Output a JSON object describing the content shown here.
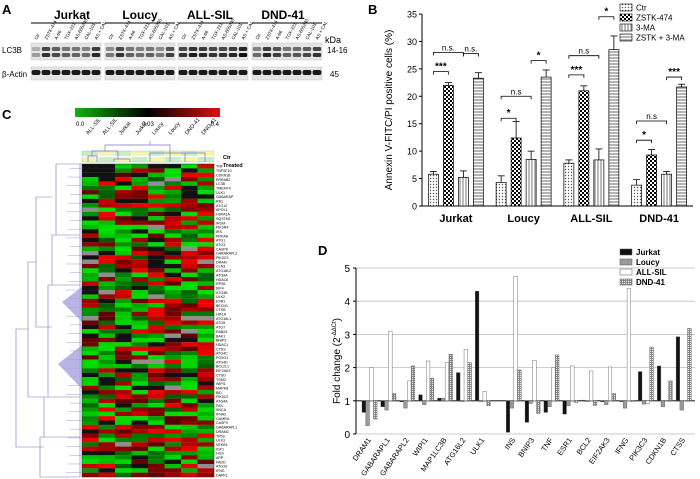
{
  "panels": {
    "A": "A",
    "B": "B",
    "C": "C",
    "D": "D"
  },
  "western": {
    "groups": [
      "Jurkat",
      "Loucy",
      "ALL-SIL",
      "DND-41"
    ],
    "lanes": [
      "Ctr",
      "ZSTK-474",
      "A-66",
      "TGX-221",
      "AS-605240",
      "CAL-101",
      "AS + CAL"
    ],
    "kda_label": "kDa",
    "rows": [
      {
        "label": "LC3B",
        "kda": "14-16"
      },
      {
        "label": "β-Actin",
        "kda": "45"
      }
    ]
  },
  "heatmap": {
    "scale": {
      "min": "0.0",
      "mid": "0.03",
      "max": "0.4"
    },
    "columns": [
      "ALL-SIL",
      "ALL-SIL",
      "Jurkat",
      "Jurkat",
      "Loucy",
      "Loucy",
      "DND-41",
      "DND-41"
    ],
    "legend": [
      "Ctr",
      "Treated"
    ],
    "genes": [
      "TNF",
      "TNFSF10",
      "CDKN1B",
      "ERRAB2",
      "LC3B",
      "TMEM74",
      "ULK1",
      "GABARAP",
      "RB1",
      "ATG12",
      "APOL1",
      "HSPA1A",
      "SQSTM1",
      "IRGM",
      "PIK3R4",
      "IRS",
      "PRKAA",
      "ATG1",
      "ATG3",
      "CASP8",
      "GABARAPL2",
      "PIK3C3",
      "DRAM",
      "CLN3",
      "ATG16L2",
      "ATG9A",
      "HDAC6",
      "RPS6",
      "EIF4",
      "ATG4B",
      "ULK2",
      "ESR1",
      "BECN1",
      "CTSB",
      "HIF1A",
      "ATG16L1",
      "ATG5",
      "ATG7",
      "RAB24",
      "BAK1",
      "BNIP3",
      "HDAC1",
      "CTSS",
      "ATG4C",
      "FOXO1",
      "ATG4D",
      "BCL2L1",
      "EIF2AK3",
      "CTSD",
      "TGM2",
      "WIPI1",
      "MAPK8",
      "BID",
      "PIK3C2",
      "ATG4A",
      "FAS",
      "SNCA",
      "IFNA2",
      "GAMRA",
      "CASP3",
      "GABARAPL1",
      "DRAM2",
      "TP53",
      "ULK3",
      "NFKB1",
      "IGF1",
      "HGS",
      "APP",
      "FADD",
      "ATG10",
      "IFNG",
      "DAPK1"
    ]
  },
  "chart_data": [
    {
      "id": "B",
      "type": "bar",
      "title": "",
      "ylabel": "Annexin V-FITC/PI positive cells (%)",
      "xlabel": "",
      "ylim": [
        0,
        35
      ],
      "yticks": [
        0,
        5,
        10,
        15,
        20,
        25,
        30,
        35
      ],
      "categories": [
        "Jurkat",
        "Loucy",
        "ALL-SIL",
        "DND-41"
      ],
      "series": [
        {
          "name": "Ctr",
          "values": [
            5.8,
            4.3,
            7.8,
            3.8
          ],
          "errors": [
            0.5,
            1.2,
            0.6,
            1.0
          ]
        },
        {
          "name": "ZSTK-474",
          "values": [
            22.0,
            12.4,
            21.0,
            9.3
          ],
          "errors": [
            0.5,
            3.0,
            0.9,
            1.0
          ]
        },
        {
          "name": "3-MA",
          "values": [
            5.2,
            8.5,
            8.4,
            5.8
          ],
          "errors": [
            1.2,
            1.5,
            2.0,
            0.5
          ]
        },
        {
          "name": "ZSTK + 3-MA",
          "values": [
            23.3,
            23.5,
            28.5,
            21.7
          ],
          "errors": [
            1.0,
            1.3,
            2.5,
            0.5
          ]
        }
      ],
      "legend_position": "top-right",
      "significance": [
        {
          "group": 0,
          "from": 0,
          "to": 1,
          "label": "***"
        },
        {
          "group": 0,
          "from": 0,
          "to": 2,
          "label": "n.s."
        },
        {
          "group": 0,
          "from": 2,
          "to": 3,
          "label": "n.s."
        },
        {
          "group": 1,
          "from": 0,
          "to": 1,
          "label": "*"
        },
        {
          "group": 1,
          "from": 0,
          "to": 2,
          "label": "n.s"
        },
        {
          "group": 1,
          "from": 2,
          "to": 3,
          "label": "*"
        },
        {
          "group": 2,
          "from": 0,
          "to": 1,
          "label": "***"
        },
        {
          "group": 2,
          "from": 0,
          "to": 2,
          "label": "n.s"
        },
        {
          "group": 2,
          "from": 2,
          "to": 3,
          "label": "*"
        },
        {
          "group": 3,
          "from": 0,
          "to": 1,
          "label": "*"
        },
        {
          "group": 3,
          "from": 0,
          "to": 2,
          "label": "n.s"
        },
        {
          "group": 3,
          "from": 2,
          "to": 3,
          "label": "***"
        }
      ]
    },
    {
      "id": "D",
      "type": "bar",
      "title": "",
      "ylabel": "Fold change (2^-ΔΔCt)",
      "ylabel_main": "Fold change (2",
      "ylabel_sup": "-ΔΔCt",
      "ylabel_end": ")",
      "xlabel": "",
      "ylim": [
        0,
        5
      ],
      "yticks": [
        0,
        1,
        2,
        3,
        4,
        5
      ],
      "baseline": 1,
      "categories": [
        "DRAM1",
        "GABARAPL1",
        "GABARAPL2",
        "WIPI1",
        "MAP1LC3B",
        "ATG16L2",
        "ULK1",
        "INS",
        "BNIP3",
        "TNF",
        "ESR1",
        "BCL2",
        "EIF2AK3",
        "IFNG",
        "PIK3C3",
        "CDKN1B",
        "CTSS"
      ],
      "series": [
        {
          "name": "Jurkat",
          "values": [
            0.65,
            0.82,
            0.97,
            1.18,
            1.08,
            1.85,
            4.3,
            0.05,
            0.35,
            0.65,
            0.6,
            1.02,
            0.97,
            1.0,
            1.88,
            2.05,
            2.93
          ]
        },
        {
          "name": "Loucy",
          "values": [
            0.25,
            0.72,
            0.78,
            0.88,
            1.08,
            1.0,
            1.0,
            0.78,
            0.92,
            0.82,
            0.85,
            0.97,
            0.88,
            0.78,
            0.9,
            0.82,
            0.72
          ]
        },
        {
          "name": "ALL-SIL",
          "values": [
            2.0,
            3.1,
            1.6,
            2.2,
            2.15,
            2.55,
            1.28,
            4.75,
            2.22,
            2.0,
            2.05,
            1.9,
            2.02,
            4.38,
            0.92,
            1.0,
            1.0
          ]
        },
        {
          "name": "DND-41",
          "values": [
            0.45,
            1.22,
            2.05,
            1.68,
            2.4,
            2.15,
            0.85,
            1.93,
            0.62,
            2.38,
            0.95,
            0.86,
            1.22,
            0.97,
            2.62,
            1.6,
            3.18
          ]
        }
      ],
      "legend_position": "top-right"
    }
  ]
}
